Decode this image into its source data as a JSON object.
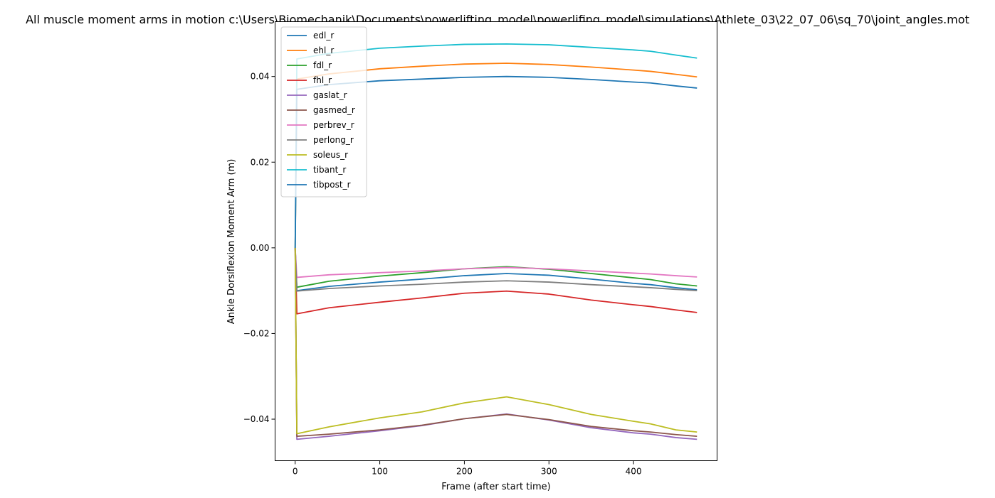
{
  "chart_data": {
    "type": "line",
    "title": "All muscle moment arms in motion c:\\Users\\Biomechanik\\Documents\\powerlifting_model\\powerlifing_model\\simulations\\Athlete_03\\22_07_06\\sq_70\\joint_angles.mot",
    "xlabel": "Frame (after start time)",
    "ylabel": "Ankle Dorsiflexion Moment Arm (m)",
    "xlim": [
      -23.75,
      498.75
    ],
    "ylim": [
      -0.0497,
      0.0528
    ],
    "xticks": [
      0,
      100,
      200,
      300,
      400
    ],
    "yticks": [
      -0.04,
      -0.02,
      0.0,
      0.02,
      0.04
    ],
    "ytick_labels": [
      "−0.04",
      "−0.02",
      "0.00",
      "0.02",
      "0.04"
    ],
    "grid": false,
    "legend_position": "top-left",
    "series": [
      {
        "name": "edl_r",
        "color": "#1f77b4",
        "x": [
          0,
          2,
          40,
          100,
          150,
          200,
          250,
          300,
          350,
          400,
          420,
          450,
          475
        ],
        "y": [
          0.0,
          -0.01,
          -0.009,
          -0.008,
          -0.0073,
          -0.0065,
          -0.006,
          -0.0064,
          -0.0073,
          -0.0083,
          -0.0086,
          -0.0093,
          -0.0098
        ]
      },
      {
        "name": "ehl_r",
        "color": "#ff7f0e",
        "x": [
          0,
          2,
          40,
          100,
          150,
          200,
          250,
          300,
          350,
          400,
          420,
          450,
          475
        ],
        "y": [
          0.0,
          0.0394,
          0.0406,
          0.0418,
          0.0424,
          0.0429,
          0.0431,
          0.0428,
          0.0422,
          0.0415,
          0.0412,
          0.0405,
          0.0399
        ]
      },
      {
        "name": "fdl_r",
        "color": "#2ca02c",
        "x": [
          0,
          2,
          40,
          100,
          150,
          200,
          250,
          300,
          350,
          400,
          420,
          450,
          475
        ],
        "y": [
          0.0,
          -0.0092,
          -0.0078,
          -0.0066,
          -0.0058,
          -0.0049,
          -0.0044,
          -0.005,
          -0.006,
          -0.007,
          -0.0074,
          -0.0084,
          -0.0089
        ]
      },
      {
        "name": "fhl_r",
        "color": "#d62728",
        "x": [
          0,
          2,
          40,
          100,
          150,
          200,
          250,
          300,
          350,
          400,
          420,
          450,
          475
        ],
        "y": [
          0.0,
          -0.0154,
          -0.014,
          -0.0127,
          -0.0117,
          -0.0106,
          -0.0101,
          -0.0108,
          -0.0122,
          -0.0133,
          -0.0137,
          -0.0145,
          -0.0151
        ]
      },
      {
        "name": "gaslat_r",
        "color": "#9467bd",
        "x": [
          0,
          2,
          40,
          100,
          150,
          200,
          250,
          300,
          350,
          400,
          420,
          450,
          475
        ],
        "y": [
          0.0,
          -0.0447,
          -0.044,
          -0.0427,
          -0.0415,
          -0.0399,
          -0.0388,
          -0.0402,
          -0.042,
          -0.0432,
          -0.0435,
          -0.0443,
          -0.0447
        ]
      },
      {
        "name": "gasmed_r",
        "color": "#8c564b",
        "x": [
          0,
          2,
          40,
          100,
          150,
          200,
          250,
          300,
          350,
          400,
          420,
          450,
          475
        ],
        "y": [
          0.0,
          -0.044,
          -0.0435,
          -0.0425,
          -0.0414,
          -0.0399,
          -0.0389,
          -0.0401,
          -0.0417,
          -0.0427,
          -0.043,
          -0.0436,
          -0.044
        ]
      },
      {
        "name": "perbrev_r",
        "color": "#e377c2",
        "x": [
          0,
          2,
          40,
          100,
          150,
          200,
          250,
          300,
          350,
          400,
          420,
          450,
          475
        ],
        "y": [
          0.0,
          -0.0069,
          -0.0063,
          -0.0058,
          -0.0054,
          -0.0049,
          -0.0046,
          -0.0049,
          -0.0054,
          -0.0059,
          -0.0061,
          -0.0065,
          -0.0068
        ]
      },
      {
        "name": "perlong_r",
        "color": "#7f7f7f",
        "x": [
          0,
          2,
          40,
          100,
          150,
          200,
          250,
          300,
          350,
          400,
          420,
          450,
          475
        ],
        "y": [
          0.0,
          -0.0101,
          -0.0095,
          -0.0089,
          -0.0085,
          -0.008,
          -0.0077,
          -0.008,
          -0.0086,
          -0.0091,
          -0.0093,
          -0.0097,
          -0.01
        ]
      },
      {
        "name": "soleus_r",
        "color": "#bcbd22",
        "x": [
          0,
          2,
          40,
          100,
          150,
          200,
          250,
          300,
          350,
          400,
          420,
          450,
          475
        ],
        "y": [
          0.0,
          -0.0434,
          -0.0418,
          -0.0397,
          -0.0383,
          -0.0362,
          -0.0348,
          -0.0366,
          -0.0389,
          -0.0405,
          -0.0411,
          -0.0425,
          -0.043
        ]
      },
      {
        "name": "tibant_r",
        "color": "#17becf",
        "x": [
          0,
          2,
          40,
          100,
          150,
          200,
          250,
          300,
          350,
          400,
          420,
          450,
          475
        ],
        "y": [
          0.0,
          0.0441,
          0.0454,
          0.0466,
          0.0471,
          0.0475,
          0.0476,
          0.0474,
          0.0468,
          0.0462,
          0.0459,
          0.045,
          0.0443
        ]
      },
      {
        "name": "tibpost_r",
        "color": "#1f77b4",
        "x": [
          0,
          2,
          40,
          100,
          150,
          200,
          250,
          300,
          350,
          400,
          420,
          450,
          475
        ],
        "y": [
          0.0,
          0.037,
          0.0381,
          0.039,
          0.0394,
          0.0398,
          0.04,
          0.0398,
          0.0393,
          0.0387,
          0.0385,
          0.0378,
          0.0373
        ]
      }
    ]
  }
}
